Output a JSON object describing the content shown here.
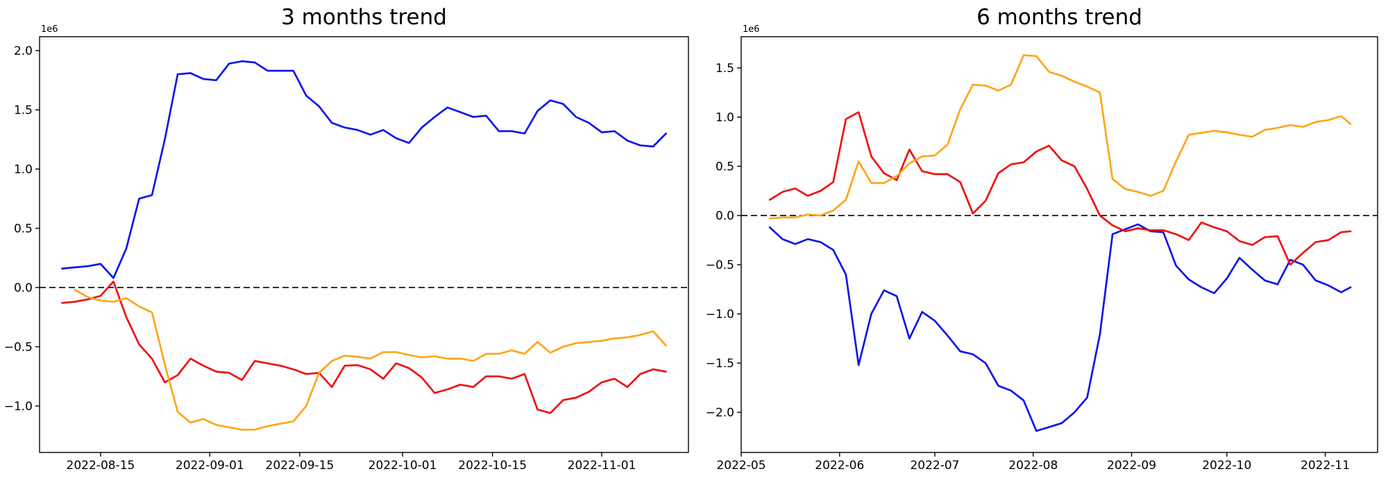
{
  "page": {
    "background": "#ffffff"
  },
  "chart_data": [
    {
      "type": "line",
      "title": "3 months trend",
      "offset_label": "1e6",
      "grid": false,
      "legend": "none",
      "xlabel": "",
      "ylabel": "",
      "xlim": [
        "2022-08-05T12:00",
        "2022-11-14T12:00"
      ],
      "ylim": [
        -1.392,
        2.117
      ],
      "x_ticks": [
        {
          "date": "2022-08-15",
          "label": "2022-08-15"
        },
        {
          "date": "2022-09-01",
          "label": "2022-09-01"
        },
        {
          "date": "2022-09-15",
          "label": "2022-09-15"
        },
        {
          "date": "2022-10-01",
          "label": "2022-10-01"
        },
        {
          "date": "2022-10-15",
          "label": "2022-10-15"
        },
        {
          "date": "2022-11-01",
          "label": "2022-11-01"
        }
      ],
      "y_ticks": [
        {
          "value": 2.0,
          "label": "2.0"
        },
        {
          "value": 1.5,
          "label": "1.5"
        },
        {
          "value": 1.0,
          "label": "1.0"
        },
        {
          "value": 0.5,
          "label": "0.5"
        },
        {
          "value": 0.0,
          "label": "0.0"
        },
        {
          "value": -0.5,
          "label": "−0.5"
        },
        {
          "value": -1.0,
          "label": "−1.0"
        }
      ],
      "zero_line": {
        "value": 0,
        "style": "dashed",
        "color": "#000000"
      },
      "x": [
        "2022-08-09",
        "2022-08-11",
        "2022-08-13",
        "2022-08-15",
        "2022-08-17",
        "2022-08-19",
        "2022-08-21",
        "2022-08-23",
        "2022-08-25",
        "2022-08-27",
        "2022-08-29",
        "2022-08-31",
        "2022-09-02",
        "2022-09-04",
        "2022-09-06",
        "2022-09-08",
        "2022-09-10",
        "2022-09-12",
        "2022-09-14",
        "2022-09-16",
        "2022-09-18",
        "2022-09-20",
        "2022-09-22",
        "2022-09-24",
        "2022-09-26",
        "2022-09-28",
        "2022-09-30",
        "2022-10-02",
        "2022-10-04",
        "2022-10-06",
        "2022-10-08",
        "2022-10-10",
        "2022-10-12",
        "2022-10-14",
        "2022-10-16",
        "2022-10-18",
        "2022-10-20",
        "2022-10-22",
        "2022-10-24",
        "2022-10-26",
        "2022-10-28",
        "2022-10-30",
        "2022-11-01",
        "2022-11-03",
        "2022-11-05",
        "2022-11-07",
        "2022-11-09",
        "2022-11-11"
      ],
      "series": [
        {
          "name": "blue",
          "color": "#0d16eb",
          "values": [
            0.16,
            0.17,
            0.18,
            0.2,
            0.08,
            0.33,
            0.75,
            0.78,
            1.25,
            1.8,
            1.81,
            1.76,
            1.75,
            1.89,
            1.91,
            1.9,
            1.83,
            1.83,
            1.83,
            1.62,
            1.53,
            1.39,
            1.35,
            1.33,
            1.29,
            1.33,
            1.26,
            1.22,
            1.35,
            1.44,
            1.52,
            1.48,
            1.44,
            1.45,
            1.32,
            1.32,
            1.3,
            1.49,
            1.58,
            1.55,
            1.44,
            1.39,
            1.31,
            1.32,
            1.24,
            1.2,
            1.19,
            1.3
          ]
        },
        {
          "name": "red",
          "color": "#ef1010",
          "values": [
            -0.13,
            -0.12,
            -0.1,
            -0.07,
            0.05,
            -0.25,
            -0.48,
            -0.6,
            -0.8,
            -0.74,
            -0.6,
            -0.66,
            -0.71,
            -0.72,
            -0.78,
            -0.62,
            -0.64,
            -0.66,
            -0.69,
            -0.73,
            -0.72,
            -0.84,
            -0.66,
            -0.655,
            -0.69,
            -0.77,
            -0.64,
            -0.68,
            -0.76,
            -0.89,
            -0.86,
            -0.82,
            -0.84,
            -0.75,
            -0.75,
            -0.77,
            -0.73,
            -1.03,
            -1.06,
            -0.95,
            -0.93,
            -0.88,
            -0.8,
            -0.77,
            -0.84,
            -0.73,
            -0.69,
            -0.71
          ]
        },
        {
          "name": "orange",
          "color": "#ffa519",
          "values": [
            null,
            -0.02,
            -0.08,
            -0.11,
            -0.12,
            -0.09,
            -0.16,
            -0.21,
            -0.65,
            -1.05,
            -1.14,
            -1.11,
            -1.16,
            -1.18,
            -1.2,
            -1.2,
            -1.17,
            -1.15,
            -1.13,
            -1.0,
            -0.72,
            -0.62,
            -0.575,
            -0.585,
            -0.6,
            -0.545,
            -0.545,
            -0.57,
            -0.59,
            -0.58,
            -0.6,
            -0.6,
            -0.62,
            -0.56,
            -0.56,
            -0.53,
            -0.56,
            -0.46,
            -0.55,
            -0.5,
            -0.47,
            -0.46,
            -0.45,
            -0.43,
            -0.42,
            -0.4,
            -0.37,
            -0.49
          ]
        }
      ]
    },
    {
      "type": "line",
      "title": "6 months trend",
      "offset_label": "1e6",
      "grid": false,
      "legend": "none",
      "xlabel": "",
      "ylabel": "",
      "xlim": [
        "2022-05-01T00:00",
        "2022-11-17T12:00"
      ],
      "ylim": [
        -2.408,
        1.817
      ],
      "x_ticks": [
        {
          "date": "2022-05-01",
          "label": "2022-05"
        },
        {
          "date": "2022-06-01",
          "label": "2022-06"
        },
        {
          "date": "2022-07-01",
          "label": "2022-07"
        },
        {
          "date": "2022-08-01",
          "label": "2022-08"
        },
        {
          "date": "2022-09-01",
          "label": "2022-09"
        },
        {
          "date": "2022-10-01",
          "label": "2022-10"
        },
        {
          "date": "2022-11-01",
          "label": "2022-11"
        }
      ],
      "y_ticks": [
        {
          "value": 1.5,
          "label": "1.5"
        },
        {
          "value": 1.0,
          "label": "1.0"
        },
        {
          "value": 0.5,
          "label": "0.5"
        },
        {
          "value": 0.0,
          "label": "0.0"
        },
        {
          "value": -0.5,
          "label": "−0.5"
        },
        {
          "value": -1.0,
          "label": "−1.0"
        },
        {
          "value": -1.5,
          "label": "−1.5"
        },
        {
          "value": -2.0,
          "label": "−2.0"
        }
      ],
      "zero_line": {
        "value": 0,
        "style": "dashed",
        "color": "#000000"
      },
      "x": [
        "2022-05-10",
        "2022-05-14",
        "2022-05-18",
        "2022-05-22",
        "2022-05-26",
        "2022-05-30",
        "2022-06-03",
        "2022-06-07",
        "2022-06-11",
        "2022-06-15",
        "2022-06-19",
        "2022-06-23",
        "2022-06-27",
        "2022-07-01",
        "2022-07-05",
        "2022-07-09",
        "2022-07-13",
        "2022-07-17",
        "2022-07-21",
        "2022-07-25",
        "2022-07-29",
        "2022-08-02",
        "2022-08-06",
        "2022-08-10",
        "2022-08-14",
        "2022-08-18",
        "2022-08-22",
        "2022-08-26",
        "2022-08-30",
        "2022-09-03",
        "2022-09-07",
        "2022-09-11",
        "2022-09-15",
        "2022-09-19",
        "2022-09-23",
        "2022-09-27",
        "2022-10-01",
        "2022-10-05",
        "2022-10-09",
        "2022-10-13",
        "2022-10-17",
        "2022-10-21",
        "2022-10-25",
        "2022-10-29",
        "2022-11-02",
        "2022-11-06",
        "2022-11-09"
      ],
      "series": [
        {
          "name": "blue",
          "color": "#0d16eb",
          "values": [
            -0.12,
            -0.24,
            -0.29,
            -0.24,
            -0.27,
            -0.35,
            -0.6,
            -1.52,
            -1.0,
            -0.76,
            -0.82,
            -1.25,
            -0.98,
            -1.07,
            -1.22,
            -1.38,
            -1.41,
            -1.5,
            -1.73,
            -1.78,
            -1.88,
            -2.19,
            -2.15,
            -2.11,
            -2.0,
            -1.85,
            -1.21,
            -0.19,
            -0.14,
            -0.09,
            -0.16,
            -0.17,
            -0.51,
            -0.65,
            -0.73,
            -0.79,
            -0.64,
            -0.43,
            -0.55,
            -0.66,
            -0.7,
            -0.45,
            -0.5,
            -0.66,
            -0.71,
            -0.78,
            -0.73
          ]
        },
        {
          "name": "red",
          "color": "#ef1010",
          "values": [
            0.16,
            0.24,
            0.275,
            0.2,
            0.25,
            0.34,
            0.98,
            1.05,
            0.6,
            0.43,
            0.36,
            0.67,
            0.45,
            0.42,
            0.42,
            0.34,
            0.02,
            0.15,
            0.43,
            0.52,
            0.54,
            0.65,
            0.71,
            0.56,
            0.5,
            0.27,
            0.0,
            -0.1,
            -0.16,
            -0.13,
            -0.15,
            -0.15,
            -0.19,
            -0.25,
            -0.07,
            -0.12,
            -0.16,
            -0.26,
            -0.3,
            -0.22,
            -0.21,
            -0.5,
            -0.38,
            -0.27,
            -0.25,
            -0.17,
            -0.16
          ]
        },
        {
          "name": "orange",
          "color": "#ffa519",
          "values": [
            -0.03,
            -0.02,
            -0.02,
            0.01,
            0.0,
            0.05,
            0.16,
            0.55,
            0.33,
            0.33,
            0.4,
            0.53,
            0.6,
            0.61,
            0.72,
            1.08,
            1.33,
            1.32,
            1.27,
            1.33,
            1.63,
            1.62,
            1.46,
            1.42,
            1.36,
            1.31,
            1.25,
            0.37,
            0.27,
            0.24,
            0.2,
            0.25,
            0.55,
            0.82,
            0.84,
            0.86,
            0.845,
            0.82,
            0.8,
            0.87,
            0.89,
            0.92,
            0.9,
            0.95,
            0.97,
            1.01,
            0.93
          ]
        }
      ]
    }
  ]
}
